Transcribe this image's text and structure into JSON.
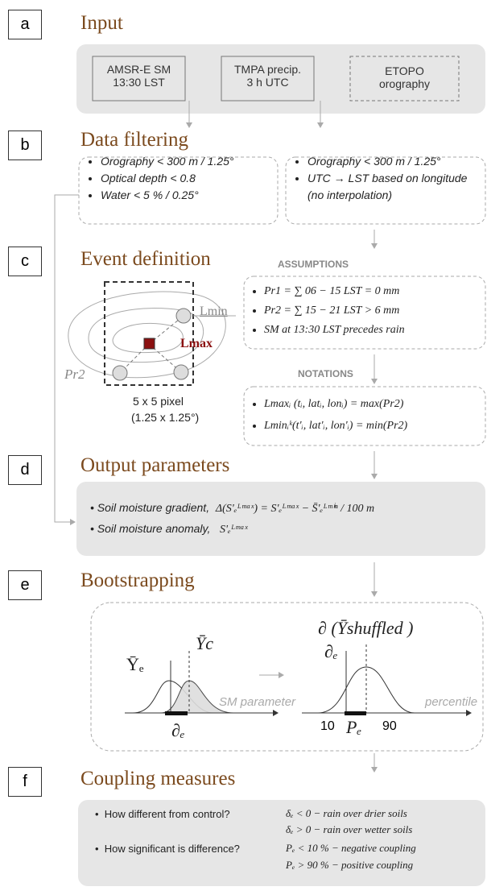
{
  "sections": [
    {
      "letter": "a",
      "title": "Input"
    },
    {
      "letter": "b",
      "title": "Data filtering"
    },
    {
      "letter": "c",
      "title": "Event definition"
    },
    {
      "letter": "d",
      "title": "Output parameters"
    },
    {
      "letter": "e",
      "title": "Bootstrapping"
    },
    {
      "letter": "f",
      "title": "Coupling measures"
    }
  ],
  "input": {
    "boxes": [
      [
        "AMSR-E SM",
        "13:30 LST"
      ],
      [
        "TMPA precip.",
        "3 h  UTC"
      ],
      [
        "ETOPO",
        "orography"
      ]
    ]
  },
  "filtering": {
    "left": [
      "Orography < 300 m / 1.25°",
      "Optical depth < 0.8",
      "Water < 5 % / 0.25°"
    ],
    "right": [
      "Orography < 300 m / 1.25°",
      "UTC → LST based on longitude (no interpolation)"
    ]
  },
  "event": {
    "assumptions_label": "ASSUMPTIONS",
    "assumptions": [
      "Pr1 = ∑ 06 − 15 LST = 0 mm",
      "Pr2 = ∑ 15 − 21 LST > 6 mm",
      "SM at 13:30 LST precedes rain"
    ],
    "notations_label": "NOTATIONS",
    "notations": [
      "Lmaxᵢ (tᵢ, latᵢ, lonᵢ) = max(Pr2)",
      "Lminᵢᵏ(t'ᵢ, lat'ᵢ, lon'ᵢ) = min(Pr2)"
    ],
    "figure": {
      "lmin": "Lmin",
      "lmax": "Lmax",
      "pr2": "Pr2",
      "pixel": "5 x 5 pixel",
      "size": "(1.25 x 1.25°)"
    }
  },
  "output": {
    "items": [
      {
        "label": "Soil moisture gradient,",
        "formula": "Δ(S'ₑᴸᵐᵃˣ) = S'ₑᴸᵐᵃˣ − S̄'ₑᴸᵐⁱⁿ / 100 m"
      },
      {
        "label": "Soil moisture anomaly,",
        "formula": "S'ₑᴸᵐᵃˣ"
      }
    ]
  },
  "bootstrap": {
    "ye": "Ȳₑ",
    "yc": "Ȳc",
    "sm": "SM parameter",
    "de_left": "∂ₑ",
    "shuffled": "∂ (Ȳshuffled )",
    "de_right": "∂ₑ",
    "percentile": "percentile",
    "p10": "10",
    "pe": "Pₑ",
    "p90": "90"
  },
  "coupling": {
    "items": [
      {
        "question": "How different from control?",
        "outcomes": [
          "δₑ < 0  − rain over drier soils",
          "δₑ > 0  − rain over wetter soils"
        ]
      },
      {
        "question": "How significant is difference?",
        "outcomes": [
          "Pₑ < 10 %  − negative coupling",
          "Pₑ > 90 %  − positive coupling"
        ]
      }
    ]
  }
}
